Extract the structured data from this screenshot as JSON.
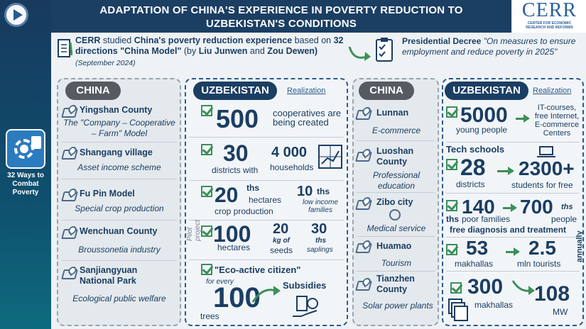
{
  "header": {
    "title_line1": "ADAPTATION OF CHINA'S EXPERIENCE IN POVERTY REDUCTION TO",
    "title_line2": "UZBEKISTAN'S CONDITIONS"
  },
  "logo": {
    "name": "CERR",
    "sub1": "CENTER FOR ECONOMIC",
    "sub2": "RESEARCH AND REFORMS"
  },
  "sidebar": {
    "badge_label": "32 Ways to Combat Poverty"
  },
  "intro": {
    "p1": "CERR",
    "p2": " studied ",
    "p3": "China's poverty reduction experience",
    "p4": " based on ",
    "p5": "32 directions \"China Model\"",
    "p6": " (by ",
    "p7": "Liu Junwen",
    "p8": " and ",
    "p9": "Zou Dewen)",
    "p10": " (September 2024)"
  },
  "decree": {
    "bold": "Presidential Decree",
    "text": " \"On measures to ensure employment and reduce poverty in 2025\""
  },
  "col1": {
    "pill": "CHINA",
    "items": [
      {
        "title": "Yingshan County",
        "sub": "The \"Company – Cooperative – Farm\" Model"
      },
      {
        "title": "Shangang village",
        "sub": "Asset income scheme"
      },
      {
        "title": "Fu Pin Model",
        "sub": "Special crop production"
      },
      {
        "title": "Wenchuan County",
        "sub": "Broussonetia industry"
      },
      {
        "title": "Sanjiangyuan National Park",
        "sub": "Ecological public welfare"
      }
    ]
  },
  "col2": {
    "pill": "UZBEKISTAN",
    "realization": "Realization",
    "r1": {
      "num": "500",
      "text": "cooperatives are being created"
    },
    "r2": {
      "num": "30",
      "text": "districts with",
      "num2": "4 000",
      "text2": "households"
    },
    "r3": {
      "num": "20",
      "ths": "ths",
      "text": "hectares",
      "text_b": "crop production",
      "num2": "10",
      "ths2": "ths",
      "text2": "low income families"
    },
    "r4": {
      "pilot": "Pilot project",
      "num": "100",
      "text": "hectares",
      "n2": "20",
      "t2a": "kg of",
      "t2b": "seeds",
      "n3": "30",
      "t3a": "ths",
      "t3b": "saplings"
    },
    "r5": {
      "title": "\"Eco-active citizen\"",
      "for_every": "for every",
      "num": "100",
      "trees": "trees",
      "subsidies": "Subsidies"
    }
  },
  "col3": {
    "pill": "CHINA",
    "items": [
      {
        "title": "Lunnan",
        "sub": "E-commerce"
      },
      {
        "title": "Luoshan County",
        "sub": "Professional education"
      },
      {
        "title": "Zibo city",
        "sub": "Medical service"
      },
      {
        "title": "Huamao",
        "sub": "Tourism"
      },
      {
        "title": "Tianzhen County",
        "sub": "Solar power plants"
      }
    ]
  },
  "col4": {
    "pill": "UZBEKISTAN",
    "realization": "Realization",
    "r1": {
      "num": "5000",
      "text": "young people",
      "right": "IT-courses, free Internet, E-commerce Centers"
    },
    "r2": {
      "title": "Tech schools",
      "num": "28",
      "text": "districts",
      "num2": "2300+",
      "text2": "students for free"
    },
    "r3": {
      "num": "140",
      "ths": "ths",
      "text": "poor families",
      "num2": "700",
      "ths2": "ths",
      "text2": "people",
      "bottom": "free diagnosis and treatment"
    },
    "r4": {
      "num": "53",
      "text": "makhallas",
      "num2": "2.5",
      "text2": "mln tourists",
      "annually": "annually"
    },
    "r5": {
      "num": "300",
      "text": "makhallas",
      "num2": "108",
      "text2": "MW"
    }
  }
}
